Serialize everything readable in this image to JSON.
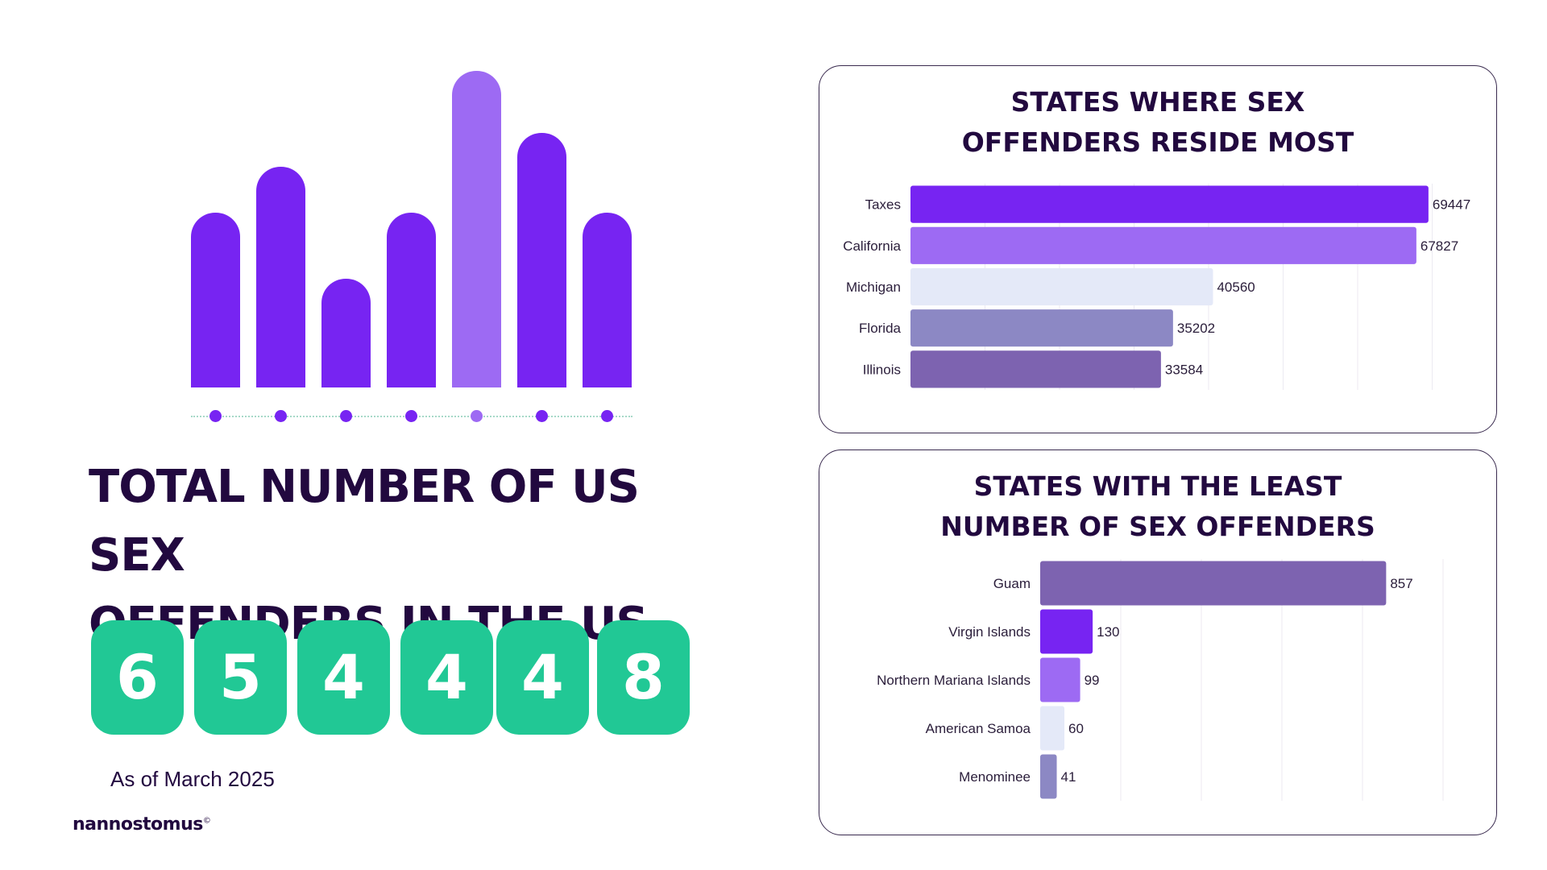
{
  "decor": {
    "bar_levels": [
      0.551,
      0.697,
      0.344,
      0.551,
      1.0,
      0.805,
      0.551
    ],
    "bar_colors": [
      "#7724f2",
      "#7724f2",
      "#7724f2",
      "#7724f2",
      "#9d6af3",
      "#7724f2",
      "#7724f2"
    ],
    "dot_colors": [
      "#7724f2",
      "#7724f2",
      "#7724f2",
      "#7724f2",
      "#9d6af3",
      "#7724f2",
      "#7724f2"
    ]
  },
  "headline": {
    "line1": "TOTAL NUMBER OF US SEX",
    "line2": "OFFENDERS IN THE US"
  },
  "total_digits": [
    "6",
    "5",
    "4",
    "4",
    "4",
    "8"
  ],
  "as_of": "As of March 2025",
  "brand": "nannostomus",
  "brand_mark": "©",
  "colors": {
    "digit_bg": "#21c895",
    "title": "#22093f"
  },
  "chart_data": [
    {
      "type": "bar",
      "orientation": "horizontal",
      "title_line1": "STATES WHERE SEX",
      "title_line2": "OFFENDERS RESIDE MOST",
      "categories": [
        "Taxes",
        "California",
        "Michigan",
        "Florida",
        "Illinois"
      ],
      "values": [
        69447,
        67827,
        40560,
        35202,
        33584
      ],
      "colors": [
        "#7724f2",
        "#9d6af3",
        "#e4e9f8",
        "#8c88c4",
        "#7d63b0"
      ],
      "xlim": [
        0,
        70000
      ],
      "grid": true,
      "legend": "none"
    },
    {
      "type": "bar",
      "orientation": "horizontal",
      "title_line1": "STATES WITH THE LEAST",
      "title_line2": "NUMBER OF SEX OFFENDERS",
      "categories": [
        "Guam",
        "Virgin Islands",
        "Northern Mariana Islands",
        "American Samoa",
        "Menominee"
      ],
      "values": [
        857,
        130,
        99,
        60,
        41
      ],
      "colors": [
        "#7d63b0",
        "#7724f2",
        "#9d6af3",
        "#e4e9f8",
        "#8c88c4"
      ],
      "xlim": [
        0,
        1000
      ],
      "grid": true,
      "legend": "none"
    }
  ]
}
